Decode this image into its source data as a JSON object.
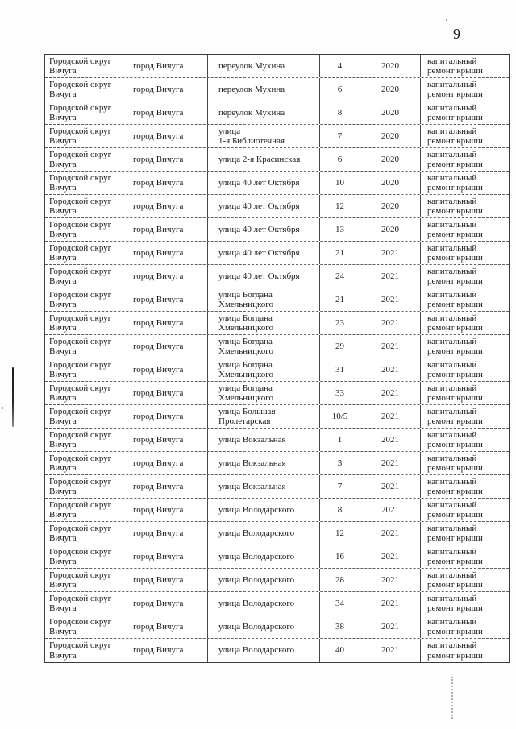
{
  "page": {
    "number": "9"
  },
  "table": {
    "district": "Городской округ\nВичуга",
    "city": "город Вичуга",
    "work": "капитальный\nремонт крыши",
    "rows": [
      {
        "street": "переулок Мухина",
        "house": "4",
        "year": "2020"
      },
      {
        "street": "переулок Мухина",
        "house": "6",
        "year": "2020"
      },
      {
        "street": "переулок Мухина",
        "house": "8",
        "year": "2020"
      },
      {
        "street": "улица\n1-я Библиотечная",
        "house": "7",
        "year": "2020"
      },
      {
        "street": "улица 2-я Красинская",
        "house": "6",
        "year": "2020"
      },
      {
        "street": "улица 40 лет Октября",
        "house": "10",
        "year": "2020"
      },
      {
        "street": "улица 40 лет Октября",
        "house": "12",
        "year": "2020"
      },
      {
        "street": "улица 40 лет Октября",
        "house": "13",
        "year": "2020"
      },
      {
        "street": "улица 40 лет Октября",
        "house": "21",
        "year": "2021"
      },
      {
        "street": "улица 40 лет Октября",
        "house": "24",
        "year": "2021"
      },
      {
        "street": "улица Богдана\nХмельницкого",
        "house": "21",
        "year": "2021"
      },
      {
        "street": "улица Богдана\nХмельницкого",
        "house": "23",
        "year": "2021"
      },
      {
        "street": "улица Богдана\nХмельницкого",
        "house": "29",
        "year": "2021"
      },
      {
        "street": "улица Богдана\nХмельницкого",
        "house": "31",
        "year": "2021"
      },
      {
        "street": "улица Богдана\nХмельницкого",
        "house": "33",
        "year": "2021"
      },
      {
        "street": "улица Большая\nПролетарская",
        "house": "10/5",
        "year": "2021"
      },
      {
        "street": "улица Вокзальная",
        "house": "1",
        "year": "2021"
      },
      {
        "street": "улица Вокзальная",
        "house": "3",
        "year": "2021"
      },
      {
        "street": "улица Вокзальная",
        "house": "7",
        "year": "2021"
      },
      {
        "street": "улица Володарского",
        "house": "8",
        "year": "2021"
      },
      {
        "street": "улица Володарского",
        "house": "12",
        "year": "2021"
      },
      {
        "street": "улица Володарского",
        "house": "16",
        "year": "2021"
      },
      {
        "street": "улица Володарского",
        "house": "28",
        "year": "2021"
      },
      {
        "street": "улица Володарского",
        "house": "34",
        "year": "2021"
      },
      {
        "street": "улица Володарского",
        "house": "38",
        "year": "2021"
      },
      {
        "street": "улица Володарского",
        "house": "40",
        "year": "2021"
      }
    ]
  }
}
